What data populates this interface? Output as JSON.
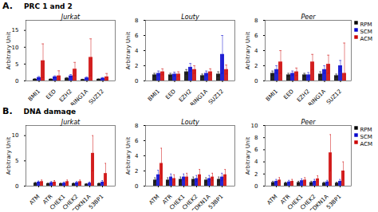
{
  "chart_data": [
    {
      "type": "bar",
      "title": "Jurkat",
      "annotations": [
        "A.",
        "PRC 1 and 2"
      ],
      "categories": [
        "BMI1",
        "EED",
        "EZH2",
        "RING1A",
        "SUZ12"
      ],
      "y_label": "Arbitrary Unit",
      "series": [
        {
          "name": "RPM",
          "color": "#000000",
          "values": [
            0.5,
            0.5,
            0.8,
            0.4,
            0.5
          ],
          "errors": [
            0.15,
            0.1,
            0.2,
            0.1,
            0.1
          ]
        },
        {
          "name": "SCM",
          "color": "#0000cc",
          "values": [
            1.0,
            1.2,
            1.5,
            0.9,
            0.8
          ],
          "errors": [
            0.3,
            0.3,
            0.4,
            0.25,
            0.2
          ]
        },
        {
          "name": "ACM",
          "color": "#cc0000",
          "values": [
            6.0,
            1.5,
            3.5,
            7.0,
            1.2
          ],
          "errors": [
            5.0,
            1.5,
            2.0,
            5.5,
            1.0
          ]
        }
      ],
      "ylim": [
        0,
        18
      ],
      "yticks": [
        0,
        5,
        10,
        15
      ]
    },
    {
      "type": "bar",
      "title": "Louty",
      "categories": [
        "BMI1",
        "EED",
        "EZH2",
        "RING1A",
        "SUZ12"
      ],
      "y_label": "Arbitrary Unit",
      "series": [
        {
          "name": "RPM",
          "color": "#000000",
          "values": [
            0.8,
            0.8,
            1.2,
            0.7,
            0.9
          ],
          "errors": [
            0.2,
            0.2,
            0.3,
            0.2,
            0.3
          ]
        },
        {
          "name": "SCM",
          "color": "#0000cc",
          "values": [
            1.0,
            0.9,
            1.8,
            1.0,
            3.5
          ],
          "errors": [
            0.3,
            0.25,
            0.5,
            0.3,
            2.5
          ]
        },
        {
          "name": "ACM",
          "color": "#cc0000",
          "values": [
            1.2,
            0.9,
            1.5,
            1.2,
            1.5
          ],
          "errors": [
            0.4,
            0.3,
            0.5,
            0.4,
            0.6
          ]
        }
      ],
      "ylim": [
        0,
        8
      ],
      "yticks": [
        0,
        2,
        4,
        6,
        8
      ]
    },
    {
      "type": "bar",
      "title": "Peer",
      "legend": "upper right",
      "categories": [
        "BMI1",
        "EED",
        "EZH2",
        "RING1A",
        "SUZ12"
      ],
      "y_label": "Arbitrary Unit",
      "series": [
        {
          "name": "RPM",
          "color": "#000000",
          "values": [
            1.0,
            0.8,
            0.8,
            0.9,
            0.7
          ],
          "errors": [
            0.3,
            0.2,
            0.2,
            0.3,
            0.2
          ]
        },
        {
          "name": "SCM",
          "color": "#0000cc",
          "values": [
            1.5,
            1.0,
            0.8,
            1.5,
            2.0
          ],
          "errors": [
            0.5,
            0.3,
            0.3,
            0.5,
            0.7
          ]
        },
        {
          "name": "ACM",
          "color": "#cc0000",
          "values": [
            2.5,
            1.2,
            2.5,
            2.2,
            1.0
          ],
          "errors": [
            1.5,
            0.5,
            1.0,
            1.2,
            4.0
          ]
        }
      ],
      "ylim": [
        0,
        8
      ],
      "yticks": [
        0,
        2,
        4,
        6,
        8
      ]
    },
    {
      "type": "bar",
      "title": "Jurkat",
      "annotations": [
        "B.",
        "DNA damage"
      ],
      "categories": [
        "ATM",
        "ATR",
        "CHEK1",
        "CHEK2",
        "CDKN1A",
        "53BP1"
      ],
      "y_label": "Arbitrary Unit",
      "series": [
        {
          "name": "RPM",
          "color": "#000000",
          "values": [
            0.6,
            0.5,
            0.5,
            0.5,
            0.4,
            0.5
          ],
          "errors": [
            0.15,
            0.1,
            0.1,
            0.1,
            0.1,
            0.1
          ]
        },
        {
          "name": "SCM",
          "color": "#0000cc",
          "values": [
            0.8,
            0.7,
            0.6,
            0.7,
            0.6,
            0.8
          ],
          "errors": [
            0.2,
            0.2,
            0.2,
            0.2,
            0.2,
            0.3
          ]
        },
        {
          "name": "ACM",
          "color": "#cc0000",
          "values": [
            0.9,
            0.8,
            0.9,
            0.9,
            6.5,
            2.5
          ],
          "errors": [
            0.3,
            0.3,
            0.3,
            0.3,
            3.5,
            2.0
          ]
        }
      ],
      "ylim": [
        0,
        12
      ],
      "yticks": [
        0,
        5,
        10
      ]
    },
    {
      "type": "bar",
      "title": "Louty",
      "categories": [
        "ATM",
        "ATR",
        "CHEK1",
        "CHEK2",
        "CDKN1A",
        "53BP1"
      ],
      "y_label": "Arbitrary Unit",
      "series": [
        {
          "name": "RPM",
          "color": "#000000",
          "values": [
            0.8,
            0.8,
            0.9,
            0.9,
            0.8,
            0.9
          ],
          "errors": [
            0.3,
            0.3,
            0.3,
            0.3,
            0.3,
            0.3
          ]
        },
        {
          "name": "SCM",
          "color": "#0000cc",
          "values": [
            1.5,
            1.2,
            1.2,
            1.0,
            1.0,
            1.2
          ],
          "errors": [
            0.6,
            0.4,
            0.4,
            0.4,
            0.4,
            0.5
          ]
        },
        {
          "name": "ACM",
          "color": "#cc0000",
          "values": [
            3.0,
            1.0,
            1.2,
            1.5,
            1.2,
            1.5
          ],
          "errors": [
            2.0,
            0.5,
            0.5,
            0.7,
            0.5,
            0.7
          ]
        }
      ],
      "ylim": [
        0,
        8
      ],
      "yticks": [
        0,
        2,
        4,
        6,
        8
      ]
    },
    {
      "type": "bar",
      "title": "Peer",
      "legend": "upper right",
      "categories": [
        "ATM",
        "ATR",
        "CHEK1",
        "CHEK2",
        "CDKN1A",
        "53BP1"
      ],
      "y_label": "Arbitrary Unit",
      "series": [
        {
          "name": "RPM",
          "color": "#000000",
          "values": [
            0.6,
            0.5,
            0.6,
            0.6,
            0.5,
            0.5
          ],
          "errors": [
            0.2,
            0.15,
            0.2,
            0.2,
            0.15,
            0.15
          ]
        },
        {
          "name": "SCM",
          "color": "#0000cc",
          "values": [
            0.8,
            0.7,
            0.9,
            0.8,
            0.7,
            0.8
          ],
          "errors": [
            0.3,
            0.25,
            0.3,
            0.3,
            0.25,
            0.3
          ]
        },
        {
          "name": "ACM",
          "color": "#cc0000",
          "values": [
            1.0,
            0.8,
            1.0,
            1.2,
            5.5,
            2.5
          ],
          "errors": [
            0.4,
            0.3,
            0.4,
            0.5,
            3.0,
            1.5
          ]
        }
      ],
      "ylim": [
        0,
        10
      ],
      "yticks": [
        0,
        2,
        4,
        6,
        8,
        10
      ]
    }
  ]
}
